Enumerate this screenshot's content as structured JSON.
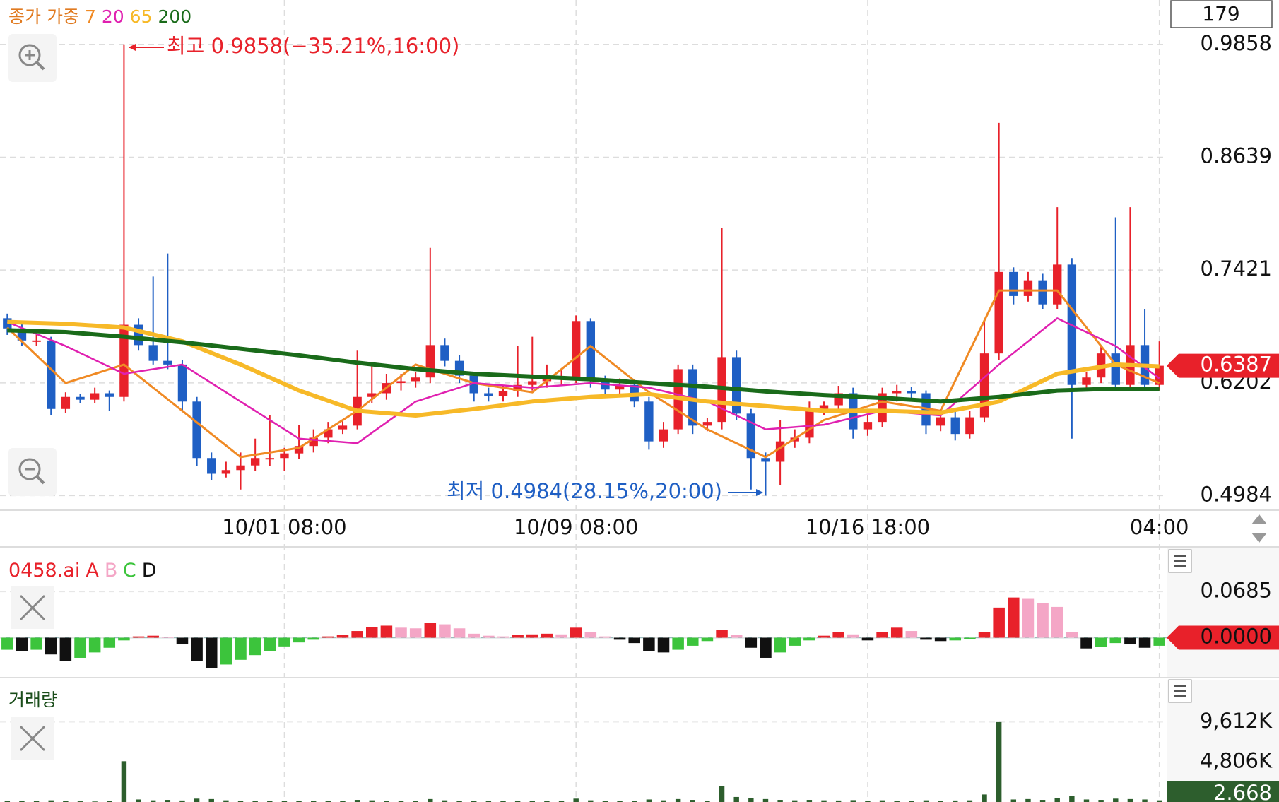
{
  "ui": {
    "counter": 179
  },
  "chart_data": [
    {
      "type": "candlestick",
      "legend_title": "종가 가중",
      "annotations": {
        "high": "최고 0.9858(−35.21%,16:00)",
        "low": "최저 0.4984(28.15%,20:00)"
      },
      "up_color": "#e8212a",
      "down_color": "#1f5fc4",
      "ylim": [
        0.4827,
        1.0337
      ],
      "yticks": [
        0.9858,
        0.8639,
        0.7421,
        0.6202,
        0.4984
      ],
      "grid": true,
      "categories": [
        null,
        null,
        null,
        null,
        null,
        null,
        null,
        null,
        null,
        null,
        null,
        null,
        null,
        null,
        null,
        null,
        null,
        null,
        null,
        "10/01 08:00",
        null,
        null,
        null,
        null,
        null,
        null,
        null,
        null,
        null,
        null,
        null,
        null,
        null,
        null,
        null,
        null,
        null,
        null,
        null,
        "10/09 08:00",
        null,
        null,
        null,
        null,
        null,
        null,
        null,
        null,
        null,
        null,
        null,
        null,
        null,
        null,
        null,
        null,
        null,
        null,
        null,
        "10/16 18:00",
        null,
        null,
        null,
        null,
        null,
        null,
        null,
        null,
        null,
        null,
        null,
        null,
        null,
        null,
        null,
        null,
        null,
        null,
        null,
        "04:00"
      ],
      "ohlc": [
        [
          0.69,
          0.695,
          0.672,
          0.679
        ],
        [
          0.679,
          0.684,
          0.66,
          0.666
        ],
        [
          0.666,
          0.672,
          0.66,
          0.666
        ],
        [
          0.666,
          0.67,
          0.585,
          0.592
        ],
        [
          0.592,
          0.61,
          0.588,
          0.605
        ],
        [
          0.605,
          0.608,
          0.598,
          0.602
        ],
        [
          0.602,
          0.615,
          0.598,
          0.609
        ],
        [
          0.609,
          0.612,
          0.59,
          0.605
        ],
        [
          0.605,
          0.9858,
          0.6,
          0.683
        ],
        [
          0.683,
          0.69,
          0.655,
          0.661
        ],
        [
          0.661,
          0.735,
          0.64,
          0.644
        ],
        [
          0.644,
          0.76,
          0.635,
          0.64
        ],
        [
          0.64,
          0.645,
          0.59,
          0.6
        ],
        [
          0.6,
          0.605,
          0.53,
          0.539
        ],
        [
          0.539,
          0.545,
          0.515,
          0.522
        ],
        [
          0.522,
          0.535,
          0.518,
          0.526
        ],
        [
          0.526,
          0.545,
          0.505,
          0.531
        ],
        [
          0.531,
          0.56,
          0.525,
          0.539
        ],
        [
          0.539,
          0.585,
          0.53,
          0.539
        ],
        [
          0.539,
          0.55,
          0.525,
          0.544
        ],
        [
          0.544,
          0.575,
          0.538,
          0.552
        ],
        [
          0.552,
          0.57,
          0.545,
          0.561
        ],
        [
          0.561,
          0.578,
          0.555,
          0.57
        ],
        [
          0.57,
          0.58,
          0.565,
          0.574
        ],
        [
          0.574,
          0.655,
          0.57,
          0.605
        ],
        [
          0.605,
          0.64,
          0.598,
          0.609
        ],
        [
          0.609,
          0.63,
          0.602,
          0.62
        ],
        [
          0.62,
          0.63,
          0.612,
          0.622
        ],
        [
          0.622,
          0.632,
          0.615,
          0.626
        ],
        [
          0.626,
          0.766,
          0.62,
          0.661
        ],
        [
          0.661,
          0.668,
          0.638,
          0.644
        ],
        [
          0.644,
          0.65,
          0.62,
          0.628
        ],
        [
          0.628,
          0.632,
          0.6,
          0.609
        ],
        [
          0.609,
          0.615,
          0.6,
          0.606
        ],
        [
          0.606,
          0.618,
          0.6,
          0.611
        ],
        [
          0.611,
          0.66,
          0.605,
          0.618
        ],
        [
          0.618,
          0.67,
          0.612,
          0.622
        ],
        [
          0.622,
          0.64,
          0.615,
          0.626
        ],
        [
          0.626,
          0.635,
          0.618,
          0.626
        ],
        [
          0.626,
          0.693,
          0.62,
          0.687
        ],
        [
          0.687,
          0.69,
          0.615,
          0.622
        ],
        [
          0.622,
          0.628,
          0.605,
          0.613
        ],
        [
          0.613,
          0.625,
          0.606,
          0.618
        ],
        [
          0.618,
          0.624,
          0.594,
          0.6
        ],
        [
          0.6,
          0.605,
          0.548,
          0.557
        ],
        [
          0.557,
          0.578,
          0.55,
          0.57
        ],
        [
          0.57,
          0.64,
          0.565,
          0.635
        ],
        [
          0.635,
          0.64,
          0.565,
          0.574
        ],
        [
          0.574,
          0.582,
          0.568,
          0.578
        ],
        [
          0.578,
          0.788,
          0.57,
          0.648
        ],
        [
          0.648,
          0.655,
          0.58,
          0.587
        ],
        [
          0.587,
          0.592,
          0.505,
          0.539
        ],
        [
          0.539,
          0.545,
          0.4984,
          0.535
        ],
        [
          0.535,
          0.58,
          0.51,
          0.557
        ],
        [
          0.557,
          0.57,
          0.55,
          0.561
        ],
        [
          0.561,
          0.6,
          0.555,
          0.592
        ],
        [
          0.592,
          0.6,
          0.585,
          0.596
        ],
        [
          0.596,
          0.617,
          0.59,
          0.609
        ],
        [
          0.609,
          0.615,
          0.56,
          0.57
        ],
        [
          0.57,
          0.585,
          0.563,
          0.578
        ],
        [
          0.578,
          0.615,
          0.572,
          0.609
        ],
        [
          0.609,
          0.618,
          0.6,
          0.611
        ],
        [
          0.611,
          0.616,
          0.6,
          0.609
        ],
        [
          0.609,
          0.612,
          0.565,
          0.574
        ],
        [
          0.574,
          0.592,
          0.568,
          0.583
        ],
        [
          0.583,
          0.59,
          0.558,
          0.565
        ],
        [
          0.565,
          0.59,
          0.56,
          0.583
        ],
        [
          0.583,
          0.69,
          0.578,
          0.652
        ],
        [
          0.652,
          0.901,
          0.645,
          0.74
        ],
        [
          0.74,
          0.745,
          0.705,
          0.714
        ],
        [
          0.714,
          0.74,
          0.708,
          0.731
        ],
        [
          0.731,
          0.738,
          0.7,
          0.705
        ],
        [
          0.705,
          0.81,
          0.7,
          0.748
        ],
        [
          0.748,
          0.755,
          0.56,
          0.618
        ],
        [
          0.618,
          0.632,
          0.612,
          0.626
        ],
        [
          0.626,
          0.66,
          0.62,
          0.652
        ],
        [
          0.652,
          0.799,
          0.612,
          0.618
        ],
        [
          0.618,
          0.81,
          0.612,
          0.661
        ],
        [
          0.661,
          0.7,
          0.612,
          0.618
        ],
        [
          0.618,
          0.665,
          0.612,
          0.6387
        ]
      ],
      "series": [
        {
          "name": "7",
          "color": "#f08a24",
          "x": [
            0,
            4,
            8,
            12,
            16,
            20,
            24,
            28,
            32,
            36,
            40,
            44,
            48,
            52,
            56,
            60,
            64,
            68,
            72,
            76,
            79
          ],
          "values": [
            0.68,
            0.62,
            0.64,
            0.59,
            0.54,
            0.55,
            0.59,
            0.64,
            0.62,
            0.61,
            0.66,
            0.61,
            0.57,
            0.54,
            0.58,
            0.6,
            0.59,
            0.72,
            0.72,
            0.64,
            0.62
          ]
        },
        {
          "name": "20",
          "color": "#e020b0",
          "x": [
            0,
            4,
            8,
            12,
            16,
            20,
            24,
            28,
            32,
            36,
            40,
            44,
            48,
            52,
            56,
            60,
            64,
            68,
            72,
            76,
            79
          ],
          "values": [
            0.686,
            0.66,
            0.63,
            0.64,
            0.6,
            0.56,
            0.555,
            0.6,
            0.62,
            0.615,
            0.62,
            0.615,
            0.6,
            0.57,
            0.575,
            0.59,
            0.585,
            0.64,
            0.69,
            0.66,
            0.625
          ]
        },
        {
          "name": "65",
          "color": "#f7b928",
          "x": [
            0,
            4,
            8,
            12,
            16,
            20,
            24,
            28,
            32,
            36,
            40,
            44,
            48,
            52,
            56,
            60,
            64,
            68,
            72,
            76,
            79
          ],
          "values": [
            0.686,
            0.684,
            0.68,
            0.665,
            0.64,
            0.612,
            0.59,
            0.585,
            0.592,
            0.6,
            0.605,
            0.608,
            0.6,
            0.595,
            0.59,
            0.59,
            0.588,
            0.6,
            0.63,
            0.64,
            0.638
          ]
        },
        {
          "name": "200",
          "color": "#1a6b1a",
          "x": [
            0,
            4,
            8,
            12,
            16,
            20,
            24,
            28,
            32,
            36,
            40,
            44,
            48,
            52,
            56,
            60,
            64,
            68,
            72,
            76,
            79
          ],
          "values": [
            0.677,
            0.675,
            0.67,
            0.664,
            0.657,
            0.65,
            0.642,
            0.635,
            0.63,
            0.627,
            0.624,
            0.62,
            0.616,
            0.611,
            0.607,
            0.604,
            0.6,
            0.605,
            0.612,
            0.614,
            0.614
          ]
        }
      ]
    },
    {
      "type": "oscillator",
      "title": "0458.ai",
      "title_color": "#e8212a",
      "legend": [
        {
          "name": "A",
          "color": "#e8212a"
        },
        {
          "name": "B",
          "color": "#f4a6c6"
        },
        {
          "name": "C",
          "color": "#3cc43c"
        },
        {
          "name": "D",
          "color": "#111111"
        }
      ],
      "ylim": [
        -0.0585,
        0.1345
      ],
      "yticks": [
        0.0685,
        {
          "value": 0,
          "label": "0.0000"
        }
      ],
      "values": [
        -0.018,
        -0.02,
        -0.018,
        -0.025,
        -0.035,
        -0.03,
        -0.022,
        -0.015,
        -0.004,
        0.002,
        0.003,
        0.001,
        -0.01,
        -0.035,
        -0.045,
        -0.04,
        -0.033,
        -0.026,
        -0.02,
        -0.013,
        -0.007,
        -0.003,
        0.002,
        0.004,
        0.01,
        0.016,
        0.018,
        0.015,
        0.014,
        0.022,
        0.02,
        0.014,
        0.006,
        0.003,
        0.002,
        0.004,
        0.005,
        0.006,
        0.005,
        0.015,
        0.008,
        0.002,
        -0.003,
        -0.008,
        -0.02,
        -0.022,
        -0.018,
        -0.012,
        -0.005,
        0.012,
        0.004,
        -0.015,
        -0.03,
        -0.022,
        -0.012,
        -0.004,
        0.003,
        0.008,
        0.005,
        -0.004,
        0.008,
        0.015,
        0.01,
        -0.003,
        -0.005,
        -0.004,
        -0.002,
        0.008,
        0.045,
        0.06,
        0.058,
        0.052,
        0.046,
        0.008,
        -0.016,
        -0.014,
        -0.008,
        -0.01,
        -0.015,
        -0.012
      ]
    },
    {
      "type": "bar",
      "title": "거래량",
      "color": "#2d5e2d",
      "ylim": [
        0,
        14700
      ],
      "yticks": [
        {
          "value": 9612,
          "label": "9,612K"
        },
        {
          "value": 4806,
          "label": "4,806K"
        }
      ],
      "last_value_label": "2.668",
      "values": [
        150,
        120,
        90,
        200,
        150,
        80,
        60,
        90,
        4900,
        300,
        200,
        250,
        180,
        400,
        350,
        200,
        150,
        120,
        100,
        90,
        100,
        120,
        110,
        90,
        250,
        200,
        150,
        120,
        100,
        350,
        200,
        150,
        120,
        100,
        90,
        150,
        120,
        100,
        90,
        400,
        200,
        150,
        100,
        120,
        300,
        200,
        350,
        250,
        150,
        1900,
        600,
        450,
        350,
        250,
        200,
        250,
        200,
        180,
        220,
        150,
        200,
        150,
        120,
        200,
        150,
        180,
        200,
        900,
        9612,
        300,
        350,
        250,
        500,
        700,
        300,
        250,
        400,
        350,
        300,
        200
      ]
    }
  ]
}
